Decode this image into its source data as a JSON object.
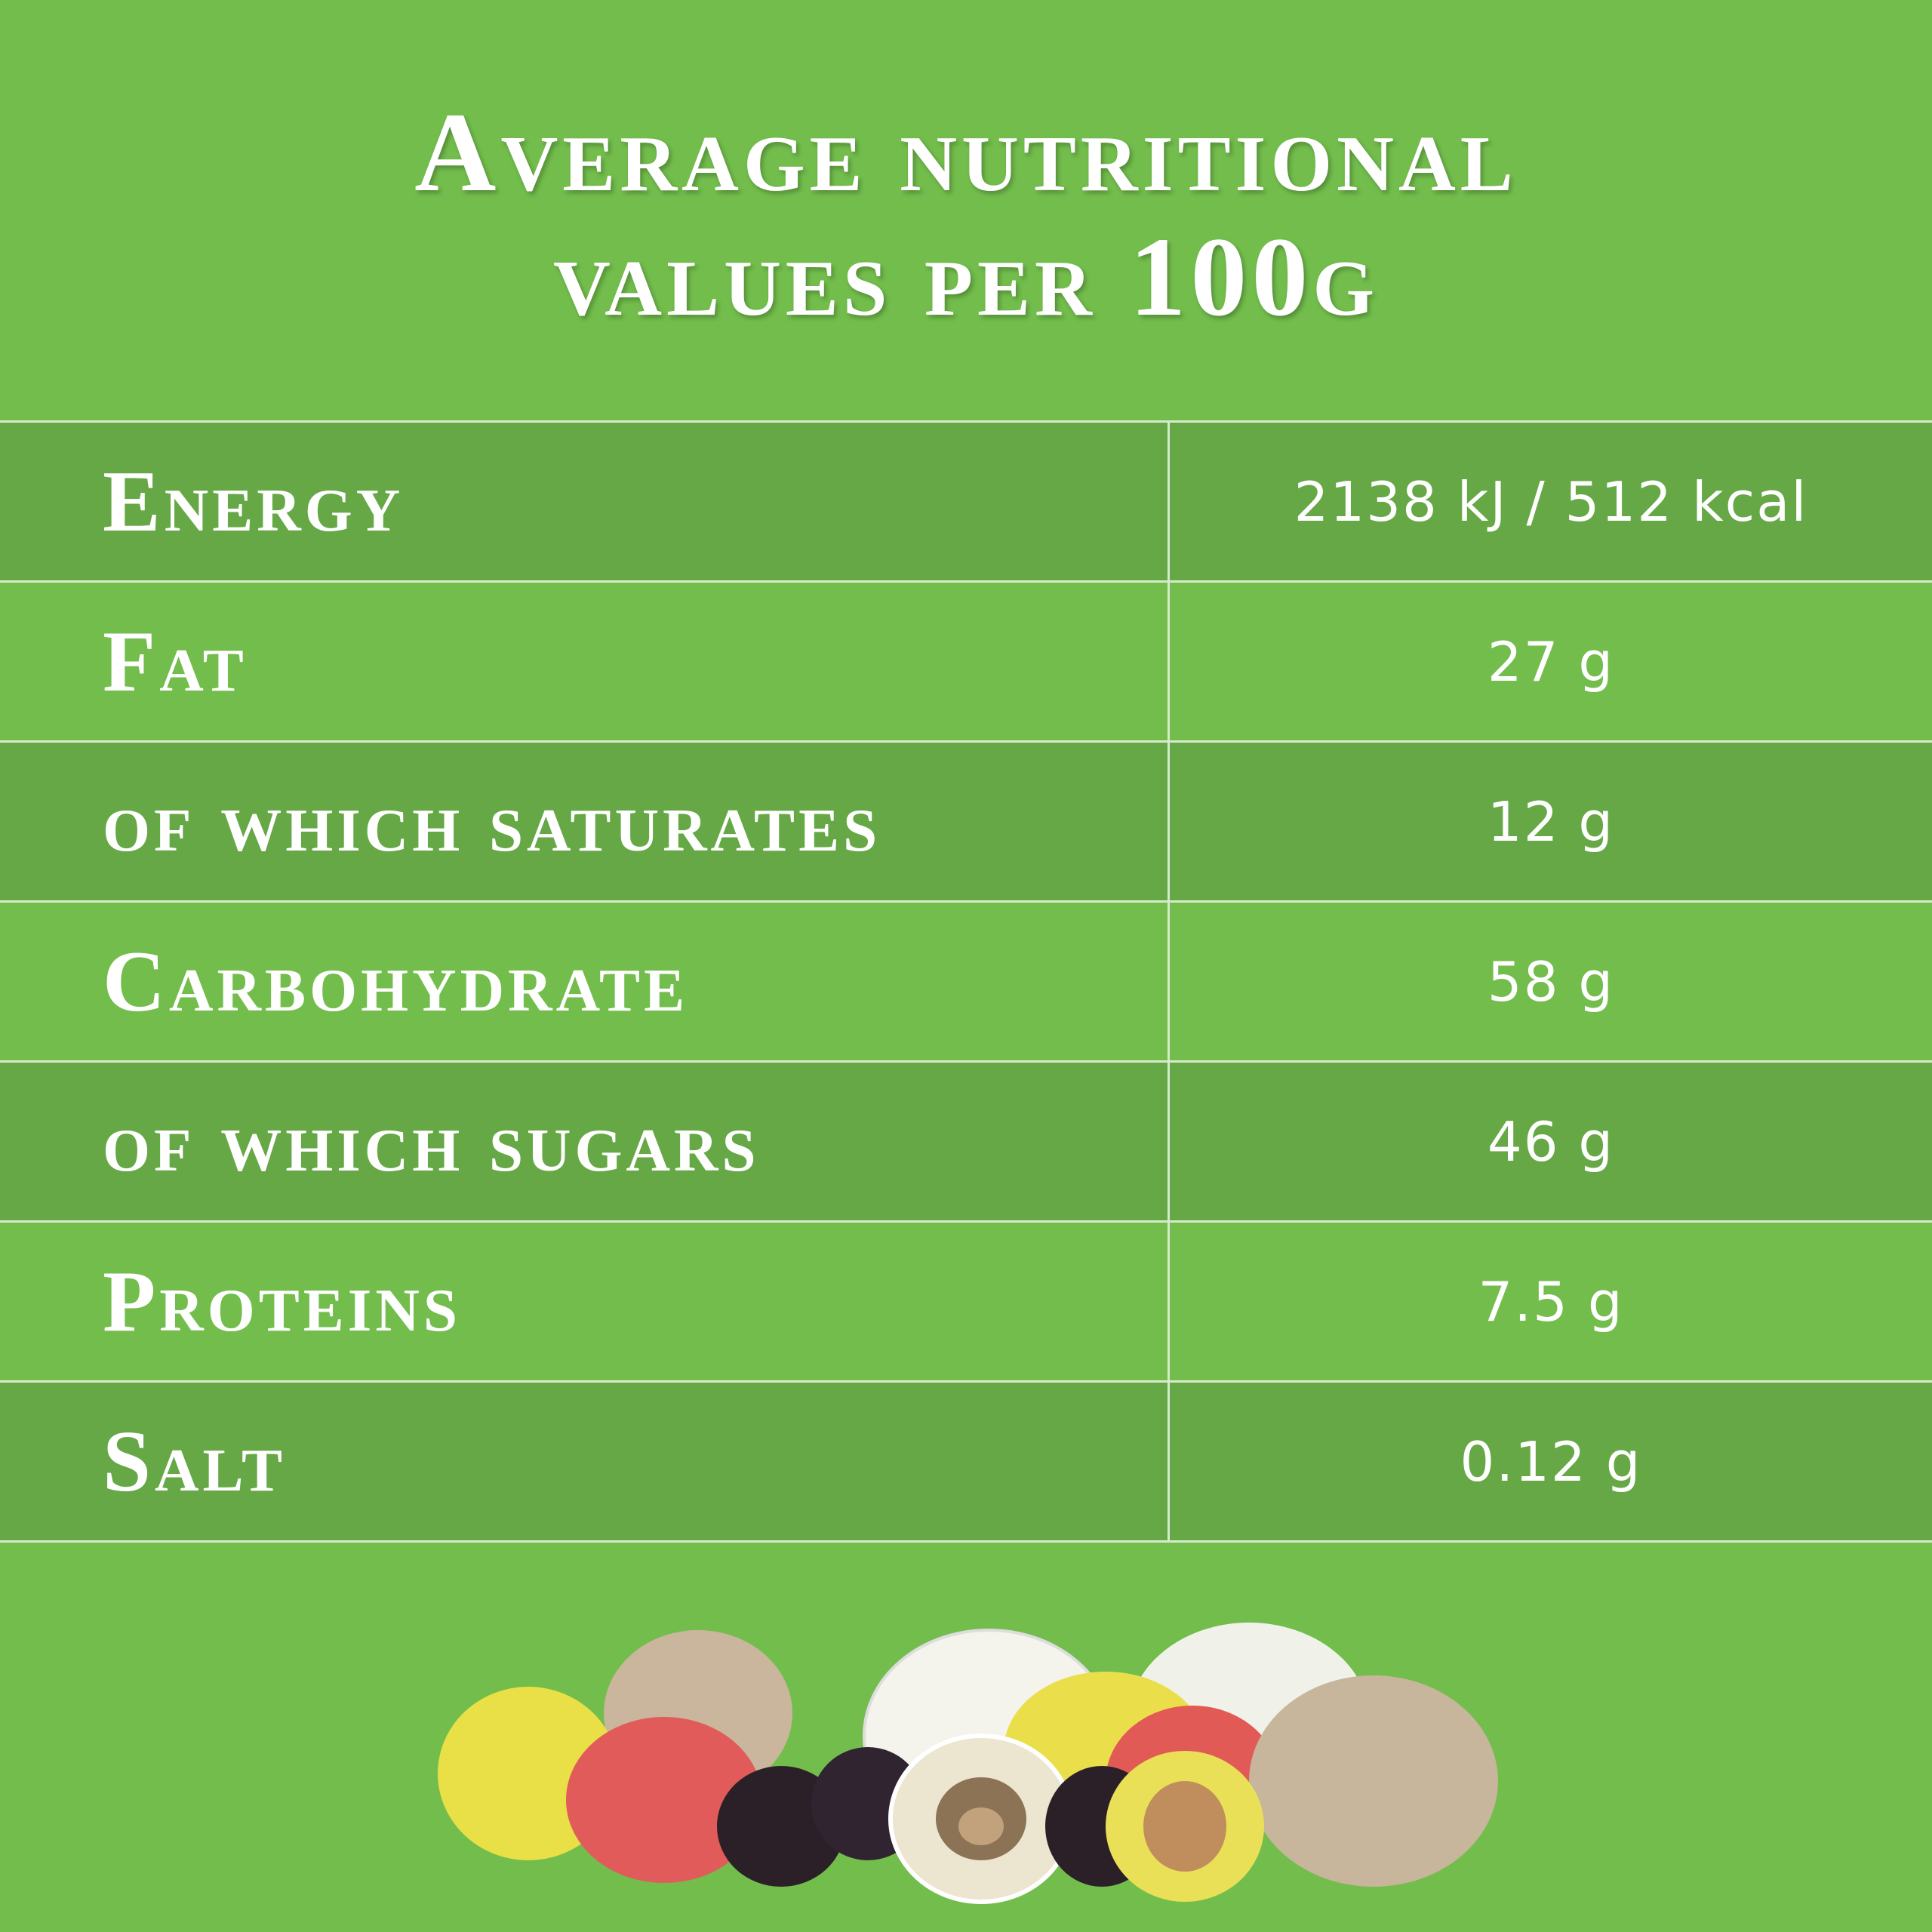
{
  "header": {
    "title": "Average nutritional values per 100g"
  },
  "table": {
    "rows": [
      [
        "Energy",
        "2138 kJ / 512 kcal"
      ],
      [
        "Fat",
        "27 g"
      ],
      [
        "of which saturates",
        "12 g"
      ],
      [
        "Carbohydrate",
        "58 g"
      ],
      [
        "of which sugars",
        "46 g"
      ],
      [
        "Proteins",
        "7.5 g"
      ],
      [
        "Salt",
        "0.12 g"
      ]
    ]
  }
}
